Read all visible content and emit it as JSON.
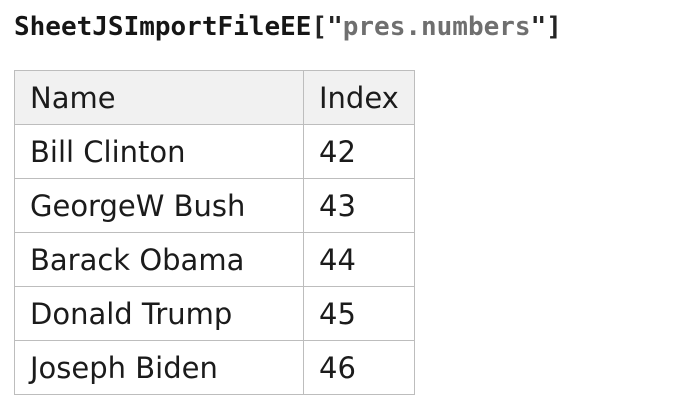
{
  "title": {
    "function_name": "SheetJSImportFileEE",
    "open_delimiter": "[\"",
    "sheet_name": "pres.numbers",
    "close_delimiter": "\"]"
  },
  "colors": {
    "title_name": "#161616",
    "title_delimiter": "#242424",
    "title_sheet": "#6f6f6f",
    "table_border": "#bdbdbd",
    "header_bg": "#f1f1f1",
    "text": "#1b1b1b",
    "page_bg": "#ffffff"
  },
  "table": {
    "columns": [
      "Name",
      "Index"
    ],
    "rows": [
      {
        "name": "Bill Clinton",
        "index": "42"
      },
      {
        "name": "GeorgeW Bush",
        "index": "43"
      },
      {
        "name": "Barack Obama",
        "index": "44"
      },
      {
        "name": "Donald Trump",
        "index": "45"
      },
      {
        "name": "Joseph Biden",
        "index": "46"
      }
    ]
  }
}
